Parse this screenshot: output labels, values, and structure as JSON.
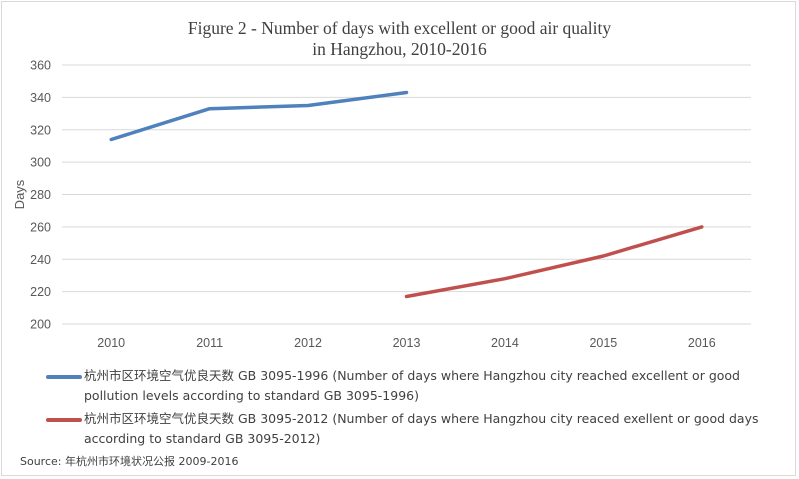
{
  "chart_data": {
    "type": "line",
    "title_line1": "Figure 2 - Number of days with excellent or good air quality",
    "title_line2": "in Hangzhou, 2010-2016",
    "ylabel": "Days",
    "xlabel": "",
    "categories": [
      "2010",
      "2011",
      "2012",
      "2013",
      "2014",
      "2015",
      "2016"
    ],
    "ylim": [
      200,
      360
    ],
    "yticks": [
      200,
      220,
      240,
      260,
      280,
      300,
      320,
      340,
      360
    ],
    "grid": true,
    "legend_position": "bottom",
    "series": [
      {
        "name": "杭州市区环境空气优良天数 GB 3095-1996 (Number of days where Hangzhou city reached excellent or good pollution levels according to standard GB 3095-1996)",
        "color": "#4f81bd",
        "values": [
          314,
          333,
          335,
          343,
          null,
          null,
          null
        ]
      },
      {
        "name": "杭州市区环境空气优良天数 GB 3095-2012 (Number of days where Hangzhou city reaced exellent or good days according to standard GB 3095-2012)",
        "color": "#c0504d",
        "values": [
          null,
          null,
          null,
          217,
          228,
          242,
          260
        ]
      }
    ]
  },
  "source": "Source: 年杭州市环境状况公报 2009-2016"
}
